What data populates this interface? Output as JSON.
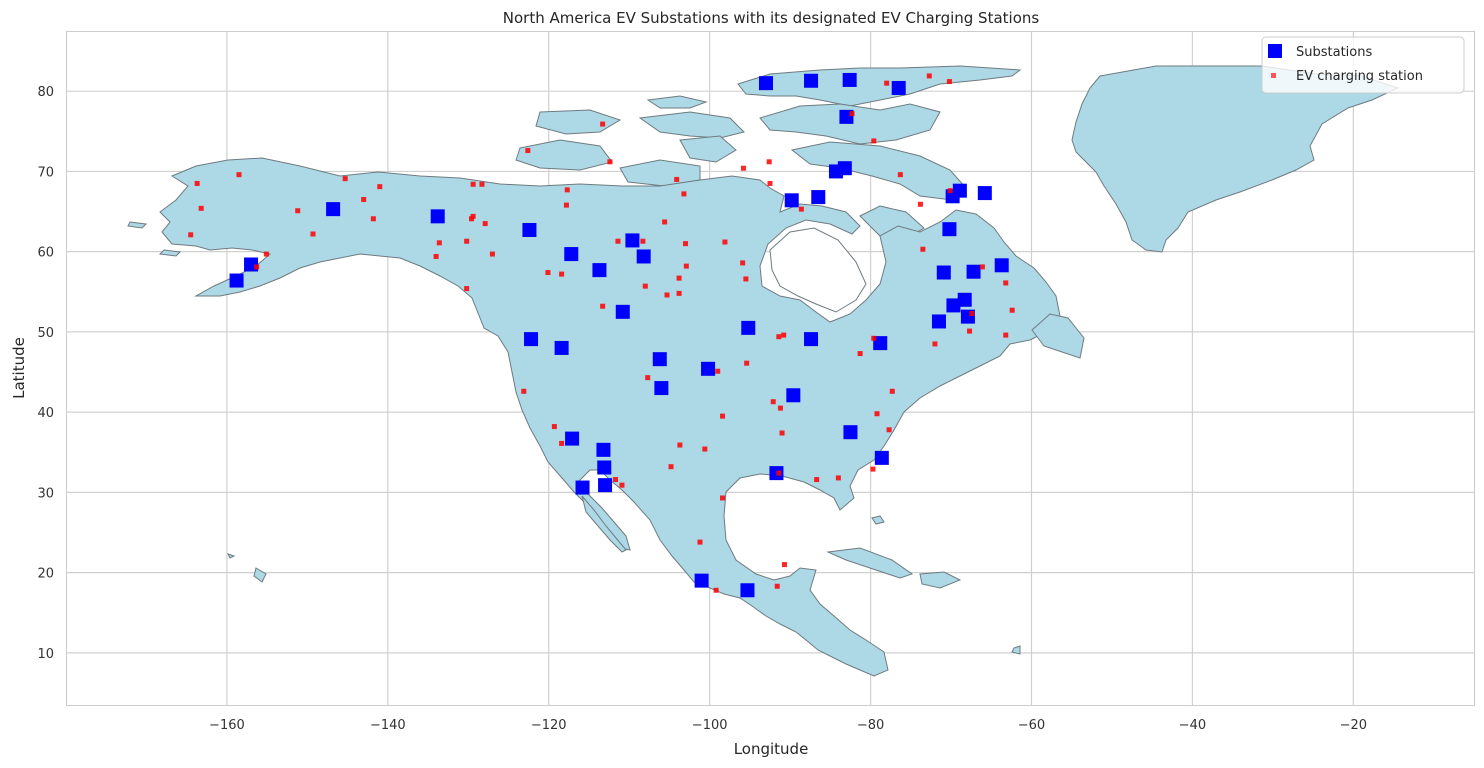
{
  "chart_data": {
    "type": "scatter",
    "title": "North America EV Substations with its designated EV Charging Stations",
    "xlabel": "Longitude",
    "ylabel": "Latitude",
    "xlim": [
      -180,
      -5
    ],
    "ylim": [
      3.5,
      87.5
    ],
    "xticks": [
      -160,
      -140,
      -120,
      -100,
      -80,
      -60,
      -40,
      -20
    ],
    "yticks": [
      10,
      20,
      30,
      40,
      50,
      60,
      70,
      80
    ],
    "grid": true,
    "legend_position": "top-right",
    "land_color": "#add8e6",
    "series": [
      {
        "name": "Substations",
        "marker": "square",
        "color": "#0000ff",
        "points": [
          [
            -158.8,
            56.4
          ],
          [
            -157.0,
            58.4
          ],
          [
            -146.8,
            65.3
          ],
          [
            -133.8,
            64.4
          ],
          [
            -122.4,
            62.7
          ],
          [
            -117.2,
            59.7
          ],
          [
            -113.7,
            57.7
          ],
          [
            -110.8,
            52.5
          ],
          [
            -109.6,
            61.4
          ],
          [
            -108.2,
            59.4
          ],
          [
            -122.2,
            49.1
          ],
          [
            -118.4,
            48.0
          ],
          [
            -106.2,
            46.6
          ],
          [
            -106.0,
            43.0
          ],
          [
            -100.2,
            45.4
          ],
          [
            -95.2,
            50.5
          ],
          [
            -87.4,
            49.1
          ],
          [
            -89.6,
            42.1
          ],
          [
            -82.5,
            37.5
          ],
          [
            -78.8,
            48.6
          ],
          [
            -78.6,
            34.3
          ],
          [
            -91.7,
            32.4
          ],
          [
            -117.1,
            36.7
          ],
          [
            -113.2,
            35.3
          ],
          [
            -113.1,
            33.1
          ],
          [
            -113.0,
            30.9
          ],
          [
            -115.8,
            30.6
          ],
          [
            -101.0,
            19.0
          ],
          [
            -95.3,
            17.8
          ],
          [
            -93.0,
            81.0
          ],
          [
            -87.4,
            81.3
          ],
          [
            -82.6,
            81.4
          ],
          [
            -76.5,
            80.4
          ],
          [
            -83.0,
            76.8
          ],
          [
            -89.8,
            66.4
          ],
          [
            -86.5,
            66.8
          ],
          [
            -84.3,
            70.0
          ],
          [
            -83.2,
            70.4
          ],
          [
            -69.8,
            66.9
          ],
          [
            -68.9,
            67.6
          ],
          [
            -65.8,
            67.3
          ],
          [
            -70.2,
            62.8
          ],
          [
            -70.9,
            57.4
          ],
          [
            -67.2,
            57.5
          ],
          [
            -63.7,
            58.3
          ],
          [
            -69.7,
            53.3
          ],
          [
            -68.3,
            54.0
          ],
          [
            -67.9,
            51.9
          ],
          [
            -71.5,
            51.3
          ]
        ]
      },
      {
        "name": "EV charging station",
        "marker": "square",
        "color": "#ff0000",
        "points": [
          [
            -163.7,
            68.5
          ],
          [
            -163.2,
            65.4
          ],
          [
            -164.5,
            62.1
          ],
          [
            -158.5,
            69.6
          ],
          [
            -151.2,
            65.1
          ],
          [
            -149.3,
            62.2
          ],
          [
            -145.3,
            69.1
          ],
          [
            -143.0,
            66.5
          ],
          [
            -141.8,
            64.1
          ],
          [
            -141.0,
            68.1
          ],
          [
            -155.1,
            59.7
          ],
          [
            -156.3,
            58.1
          ],
          [
            -133.6,
            61.1
          ],
          [
            -134.0,
            59.4
          ],
          [
            -130.2,
            61.3
          ],
          [
            -129.6,
            64.1
          ],
          [
            -129.4,
            64.4
          ],
          [
            -129.4,
            68.4
          ],
          [
            -128.3,
            68.4
          ],
          [
            -127.9,
            63.5
          ],
          [
            -127.0,
            59.7
          ],
          [
            -130.2,
            55.4
          ],
          [
            -122.6,
            72.6
          ],
          [
            -117.7,
            67.7
          ],
          [
            -117.8,
            65.8
          ],
          [
            -120.1,
            57.4
          ],
          [
            -118.4,
            57.2
          ],
          [
            -113.3,
            75.9
          ],
          [
            -112.4,
            71.2
          ],
          [
            -111.4,
            61.3
          ],
          [
            -113.3,
            53.2
          ],
          [
            -108.0,
            55.7
          ],
          [
            -108.3,
            61.3
          ],
          [
            -105.6,
            63.7
          ],
          [
            -104.1,
            69.0
          ],
          [
            -103.2,
            67.2
          ],
          [
            -103.0,
            61.0
          ],
          [
            -102.9,
            58.2
          ],
          [
            -103.8,
            56.7
          ],
          [
            -103.8,
            54.8
          ],
          [
            -105.3,
            54.6
          ],
          [
            -98.1,
            61.2
          ],
          [
            -95.9,
            58.6
          ],
          [
            -95.5,
            56.6
          ],
          [
            -95.8,
            70.4
          ],
          [
            -92.6,
            71.2
          ],
          [
            -92.5,
            68.5
          ],
          [
            -88.6,
            65.3
          ],
          [
            -79.6,
            73.8
          ],
          [
            -78.0,
            81.0
          ],
          [
            -72.7,
            81.9
          ],
          [
            -70.2,
            81.2
          ],
          [
            -82.3,
            77.2
          ],
          [
            -76.3,
            69.6
          ],
          [
            -73.8,
            65.9
          ],
          [
            -70.1,
            67.6
          ],
          [
            -73.5,
            60.3
          ],
          [
            -66.1,
            58.1
          ],
          [
            -63.2,
            56.1
          ],
          [
            -62.4,
            52.7
          ],
          [
            -67.4,
            52.3
          ],
          [
            -67.7,
            50.1
          ],
          [
            -72.0,
            48.5
          ],
          [
            -63.2,
            49.6
          ],
          [
            -79.6,
            49.2
          ],
          [
            -81.3,
            47.3
          ],
          [
            -123.1,
            42.6
          ],
          [
            -119.3,
            38.2
          ],
          [
            -118.4,
            36.1
          ],
          [
            -111.7,
            31.6
          ],
          [
            -110.9,
            30.9
          ],
          [
            -107.7,
            44.3
          ],
          [
            -99.0,
            45.1
          ],
          [
            -95.4,
            46.1
          ],
          [
            -98.4,
            39.5
          ],
          [
            -103.7,
            35.9
          ],
          [
            -100.6,
            35.4
          ],
          [
            -104.8,
            33.2
          ],
          [
            -92.1,
            41.3
          ],
          [
            -91.2,
            40.5
          ],
          [
            -91.4,
            49.4
          ],
          [
            -90.8,
            49.6
          ],
          [
            -91.0,
            37.4
          ],
          [
            -91.4,
            32.4
          ],
          [
            -98.4,
            29.3
          ],
          [
            -86.7,
            31.6
          ],
          [
            -84.0,
            31.8
          ],
          [
            -79.2,
            39.8
          ],
          [
            -79.7,
            32.9
          ],
          [
            -77.7,
            37.8
          ],
          [
            -77.3,
            42.6
          ],
          [
            -101.2,
            23.8
          ],
          [
            -99.2,
            17.8
          ],
          [
            -90.7,
            21.0
          ],
          [
            -91.6,
            18.3
          ]
        ]
      }
    ]
  }
}
